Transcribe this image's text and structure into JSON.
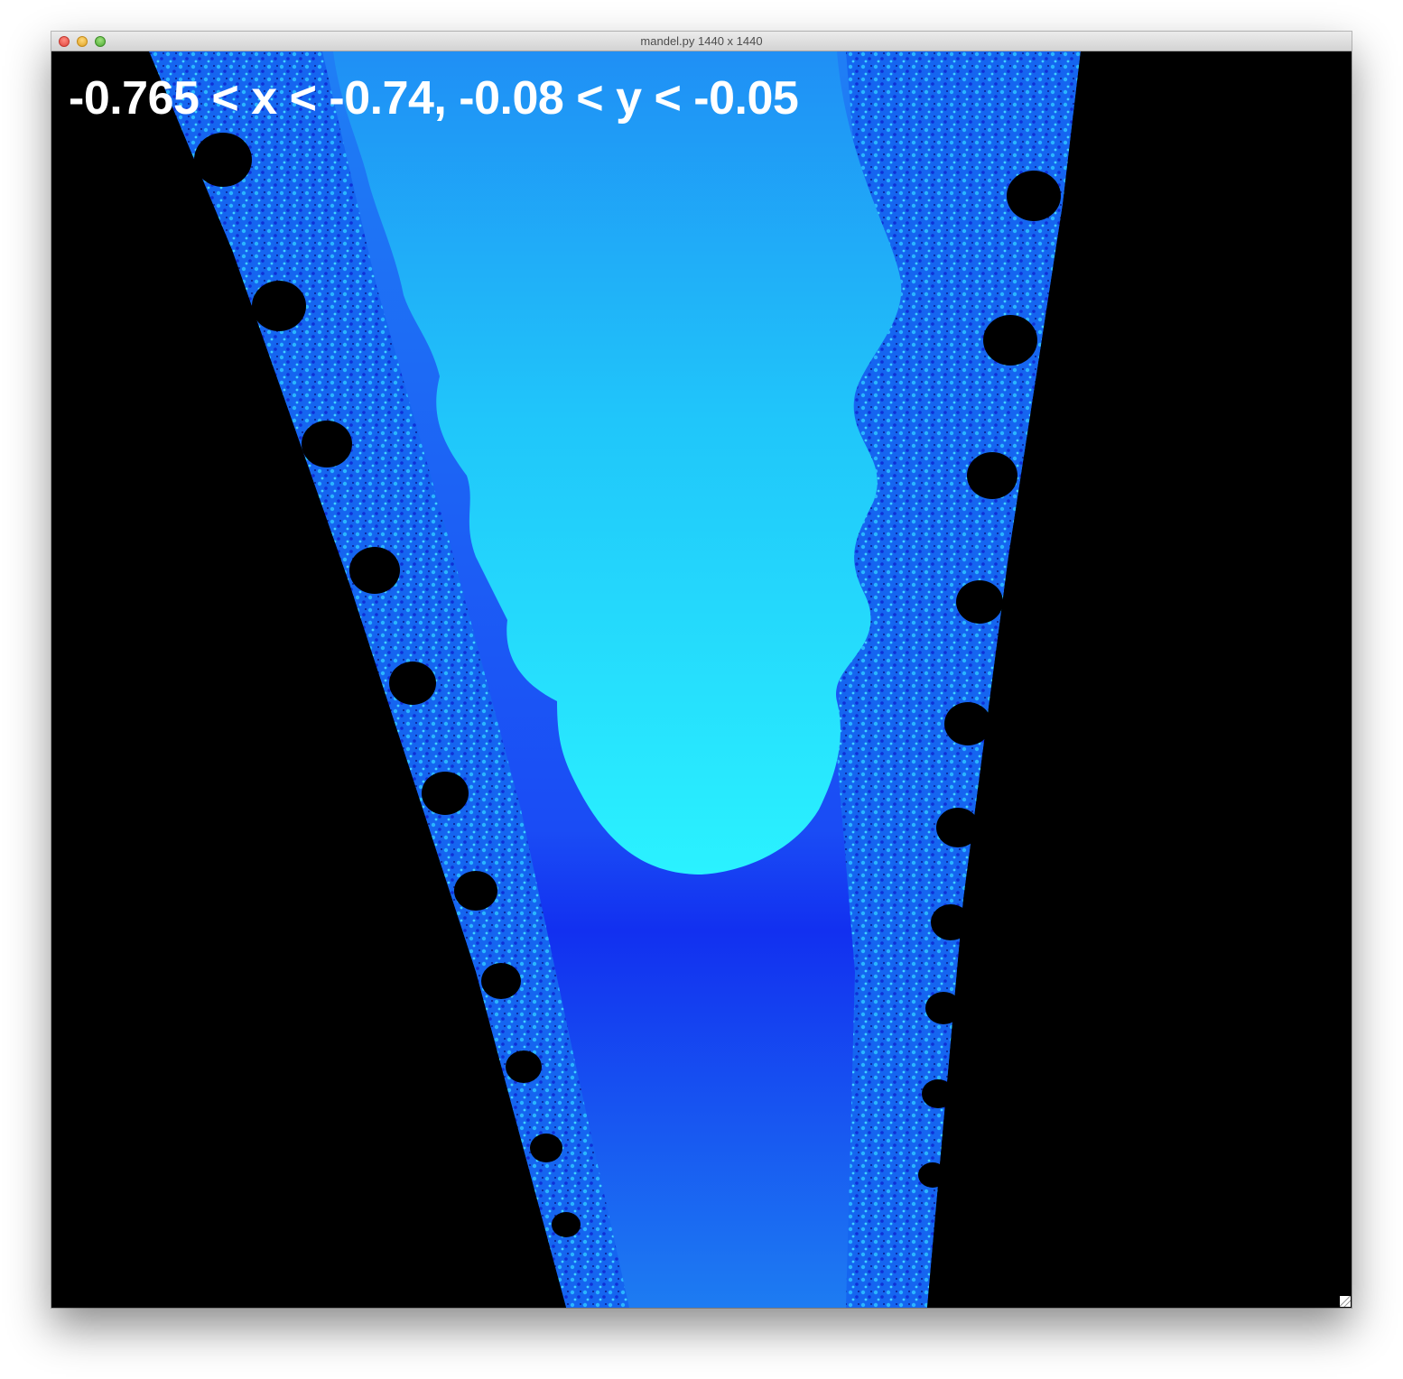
{
  "window": {
    "title": "mandel.py 1440 x 1440"
  },
  "overlay": {
    "label": "-0.765 < x < -0.74, -0.08 < y < -0.05"
  },
  "colors": {
    "background": "#000000",
    "deep_blue": "#1230f0",
    "mid_blue": "#1a8cf5",
    "light_cyan": "#28f0ff",
    "text": "#ffffff"
  },
  "icons": [
    "close-button",
    "minimize-button",
    "zoom-button",
    "resize-grip-icon"
  ]
}
